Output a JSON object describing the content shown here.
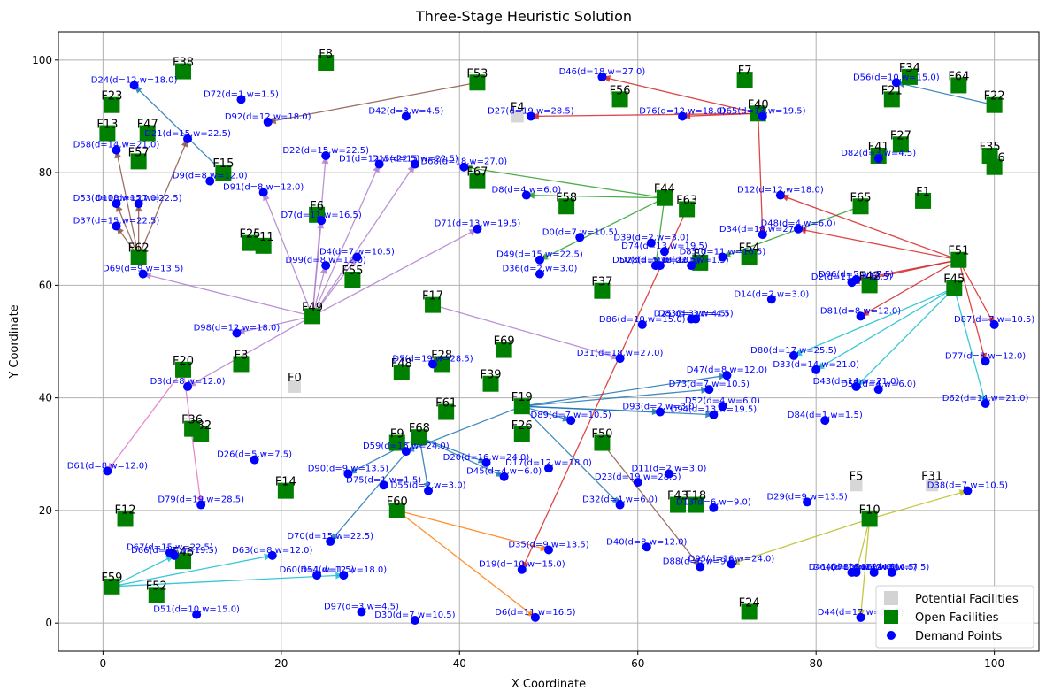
{
  "chart_data": {
    "type": "scatter",
    "title": "Three-Stage Heuristic Solution",
    "xlabel": "X Coordinate",
    "ylabel": "Y Coordinate",
    "xlim": [
      -5,
      105
    ],
    "ylim": [
      -5,
      105
    ],
    "xticks": [
      0,
      20,
      40,
      60,
      80,
      100
    ],
    "yticks": [
      0,
      20,
      40,
      60,
      80,
      100
    ],
    "grid": true,
    "legend": {
      "placement": "bottom-right",
      "entries": [
        {
          "label": "Potential Facilities",
          "color": "#d3d3d3",
          "marker": "square"
        },
        {
          "label": "Open Facilities",
          "color": "#008000",
          "marker": "square"
        },
        {
          "label": "Demand Points",
          "color": "#0000ff",
          "marker": "circle"
        }
      ]
    },
    "potential_facilities": [
      {
        "label": "F0",
        "x": 21.5,
        "y": 42
      },
      {
        "label": "F4",
        "x": 46.5,
        "y": 90
      },
      {
        "label": "F5",
        "x": 84.5,
        "y": 24.5
      },
      {
        "label": "F31",
        "x": 93,
        "y": 24.5
      }
    ],
    "open_facilities": [
      {
        "label": "F1",
        "x": 92,
        "y": 75
      },
      {
        "label": "F2",
        "x": 67,
        "y": 64
      },
      {
        "label": "F3",
        "x": 15.5,
        "y": 46
      },
      {
        "label": "F6",
        "x": 24,
        "y": 72.5
      },
      {
        "label": "F7",
        "x": 72,
        "y": 96.5
      },
      {
        "label": "F8",
        "x": 25,
        "y": 99.5
      },
      {
        "label": "F9",
        "x": 33,
        "y": 32
      },
      {
        "label": "F10",
        "x": 86,
        "y": 18.5
      },
      {
        "label": "F11",
        "x": 18,
        "y": 67
      },
      {
        "label": "F12",
        "x": 2.5,
        "y": 18.5
      },
      {
        "label": "F13",
        "x": 0.5,
        "y": 87
      },
      {
        "label": "F14",
        "x": 20.5,
        "y": 23.5
      },
      {
        "label": "F15",
        "x": 13.5,
        "y": 80
      },
      {
        "label": "F16",
        "x": 100,
        "y": 81
      },
      {
        "label": "F17",
        "x": 37,
        "y": 56.5
      },
      {
        "label": "F18",
        "x": 66.5,
        "y": 21
      },
      {
        "label": "F19",
        "x": 47,
        "y": 38.5
      },
      {
        "label": "F20",
        "x": 9,
        "y": 45
      },
      {
        "label": "F21",
        "x": 88.5,
        "y": 93
      },
      {
        "label": "F22",
        "x": 100,
        "y": 92
      },
      {
        "label": "F23",
        "x": 1,
        "y": 92
      },
      {
        "label": "F24",
        "x": 72.5,
        "y": 2
      },
      {
        "label": "F25",
        "x": 16.5,
        "y": 67.5
      },
      {
        "label": "F26",
        "x": 47,
        "y": 33.5
      },
      {
        "label": "F27",
        "x": 89.5,
        "y": 85
      },
      {
        "label": "F28",
        "x": 38,
        "y": 46
      },
      {
        "label": "F32",
        "x": 11,
        "y": 33.5
      },
      {
        "label": "F34",
        "x": 90.5,
        "y": 97
      },
      {
        "label": "F35",
        "x": 99.5,
        "y": 83
      },
      {
        "label": "F36",
        "x": 10,
        "y": 34.5
      },
      {
        "label": "F37",
        "x": 56,
        "y": 59
      },
      {
        "label": "F38",
        "x": 9,
        "y": 98
      },
      {
        "label": "F39",
        "x": 43.5,
        "y": 42.5
      },
      {
        "label": "F40",
        "x": 73.5,
        "y": 90.5
      },
      {
        "label": "F41",
        "x": 87,
        "y": 83
      },
      {
        "label": "F42",
        "x": 86,
        "y": 60
      },
      {
        "label": "F43",
        "x": 64.5,
        "y": 21
      },
      {
        "label": "F44",
        "x": 63,
        "y": 75.5
      },
      {
        "label": "F45",
        "x": 95.5,
        "y": 59.5
      },
      {
        "label": "F46",
        "x": 9,
        "y": 11
      },
      {
        "label": "F47",
        "x": 5,
        "y": 87
      },
      {
        "label": "F48",
        "x": 33.5,
        "y": 44.5
      },
      {
        "label": "F49",
        "x": 23.5,
        "y": 54.5
      },
      {
        "label": "F50",
        "x": 56,
        "y": 32
      },
      {
        "label": "F51",
        "x": 96,
        "y": 64.5
      },
      {
        "label": "F52",
        "x": 6,
        "y": 5
      },
      {
        "label": "F53",
        "x": 42,
        "y": 96
      },
      {
        "label": "F54",
        "x": 72.5,
        "y": 65
      },
      {
        "label": "F55",
        "x": 28,
        "y": 61
      },
      {
        "label": "F56",
        "x": 58,
        "y": 93
      },
      {
        "label": "F57",
        "x": 4,
        "y": 82
      },
      {
        "label": "F58",
        "x": 52,
        "y": 74
      },
      {
        "label": "F59",
        "x": 1,
        "y": 6.5
      },
      {
        "label": "F60",
        "x": 33,
        "y": 20
      },
      {
        "label": "F61",
        "x": 38.5,
        "y": 37.5
      },
      {
        "label": "F62",
        "x": 4,
        "y": 65
      },
      {
        "label": "F63",
        "x": 65.5,
        "y": 73.5
      },
      {
        "label": "F64",
        "x": 96,
        "y": 95.5
      },
      {
        "label": "F65",
        "x": 85,
        "y": 74
      },
      {
        "label": "F67",
        "x": 42,
        "y": 78.5
      },
      {
        "label": "F68",
        "x": 35.5,
        "y": 33
      },
      {
        "label": "F69",
        "x": 45,
        "y": 48.5
      }
    ],
    "demand_points": [
      {
        "label": "D0(d=7,w=10.5)",
        "x": 53.5,
        "y": 68.5
      },
      {
        "label": "D1(d=12,w=22.5)",
        "x": 31,
        "y": 81.5
      },
      {
        "label": "D2(d=11,w=16.5)",
        "x": 84,
        "y": 60.5
      },
      {
        "label": "D3(d=8,w=12.0)",
        "x": 9.5,
        "y": 42
      },
      {
        "label": "D4(d=7,w=10.5)",
        "x": 28.5,
        "y": 65
      },
      {
        "label": "D5(d=19,w=28.5)",
        "x": 37,
        "y": 46
      },
      {
        "label": "D6(d=11,w=16.5)",
        "x": 48.5,
        "y": 1
      },
      {
        "label": "D7(d=11,w=16.5)",
        "x": 24.5,
        "y": 71.5
      },
      {
        "label": "D8(d=4,w=6.0)",
        "x": 47.5,
        "y": 76
      },
      {
        "label": "D9(d=8,w=12.0)",
        "x": 12,
        "y": 78.5
      },
      {
        "label": "D10(d=15,w=22.5)",
        "x": 4,
        "y": 74.5
      },
      {
        "label": "D11(d=2,w=3.0)",
        "x": 63.5,
        "y": 26.5
      },
      {
        "label": "D12(d=12,w=18.0)",
        "x": 76,
        "y": 76
      },
      {
        "label": "D13(d=6,w=9.0)",
        "x": 68.5,
        "y": 20.5
      },
      {
        "label": "D14(d=2,w=3.0)",
        "x": 75,
        "y": 57.5
      },
      {
        "label": "D15(d=15,w=22.5)",
        "x": 35,
        "y": 81.5
      },
      {
        "label": "D16(d=5,w=7.5)",
        "x": 88.5,
        "y": 9
      },
      {
        "label": "D17(d=12,w=18.0)",
        "x": 50,
        "y": 27.5
      },
      {
        "label": "D18(d=1,w=1.5)",
        "x": 66,
        "y": 63.5
      },
      {
        "label": "D19(d=10,w=15.0)",
        "x": 47,
        "y": 9.5
      },
      {
        "label": "D20(d=16,w=24.0)",
        "x": 43,
        "y": 28.5
      },
      {
        "label": "D21(d=15,w=22.5)",
        "x": 9.5,
        "y": 86
      },
      {
        "label": "D22(d=15,w=22.5)",
        "x": 25,
        "y": 83
      },
      {
        "label": "D23(d=19,w=28.5)",
        "x": 60,
        "y": 25
      },
      {
        "label": "D24(d=12,w=18.0)",
        "x": 3.5,
        "y": 95.5
      },
      {
        "label": "D25(d=3,w=4.5)",
        "x": 66,
        "y": 54
      },
      {
        "label": "D26(d=5,w=7.5)",
        "x": 17,
        "y": 29
      },
      {
        "label": "D27(d=19,w=28.5)",
        "x": 48,
        "y": 90
      },
      {
        "label": "D28(d=7,w=10.5)",
        "x": 62.5,
        "y": 63.5
      },
      {
        "label": "D29(d=9,w=13.5)",
        "x": 79,
        "y": 21.5
      },
      {
        "label": "D30(d=7,w=10.5)",
        "x": 35,
        "y": 0.5
      },
      {
        "label": "D31(d=18,w=27.0)",
        "x": 58,
        "y": 47
      },
      {
        "label": "D32(d=4,w=6.0)",
        "x": 58,
        "y": 21
      },
      {
        "label": "D33(d=14,w=21.0)",
        "x": 80,
        "y": 45
      },
      {
        "label": "D34(d=18,w=27.0)",
        "x": 74,
        "y": 69
      },
      {
        "label": "D35(d=9,w=13.5)",
        "x": 50,
        "y": 13
      },
      {
        "label": "D36(d=2,w=3.0)",
        "x": 49,
        "y": 62
      },
      {
        "label": "D37(d=15,w=22.5)",
        "x": 1.5,
        "y": 70.5
      },
      {
        "label": "D38(d=7,w=10.5)",
        "x": 97,
        "y": 23.5
      },
      {
        "label": "D39(d=2,w=3.0)",
        "x": 61.5,
        "y": 67.5
      },
      {
        "label": "D40(d=8,w=12.0)",
        "x": 61,
        "y": 13.5
      },
      {
        "label": "D41(d=16,w=24.0)",
        "x": 84,
        "y": 9
      },
      {
        "label": "D42(d=3,w=4.5)",
        "x": 34,
        "y": 90
      },
      {
        "label": "D43(d=14,w=21.0)",
        "x": 84.5,
        "y": 42
      },
      {
        "label": "D44(d=17,w=25.5)",
        "x": 85,
        "y": 1
      },
      {
        "label": "D45(d=4,w=6.0)",
        "x": 45,
        "y": 26
      },
      {
        "label": "D46(d=18,w=27.0)",
        "x": 56,
        "y": 97
      },
      {
        "label": "D47(d=8,w=12.0)",
        "x": 70,
        "y": 44
      },
      {
        "label": "D48(d=4,w=6.0)",
        "x": 78,
        "y": 70
      },
      {
        "label": "D49(d=15,w=22.5)",
        "x": 49,
        "y": 64.5
      },
      {
        "label": "D50(d=15,w=22.5)",
        "x": 62,
        "y": 63.5
      },
      {
        "label": "D51(d=10,w=15.0)",
        "x": 10.5,
        "y": 1.5
      },
      {
        "label": "D52(d=4,w=6.0)",
        "x": 69.5,
        "y": 38.5
      },
      {
        "label": "D53(d=18,w=27.0)",
        "x": 1.5,
        "y": 74.5
      },
      {
        "label": "D54(d=12,w=18.0)",
        "x": 27,
        "y": 8.5
      },
      {
        "label": "D55(d=2,w=3.0)",
        "x": 36.5,
        "y": 23.5
      },
      {
        "label": "D56(d=10,w=15.0)",
        "x": 89,
        "y": 96
      },
      {
        "label": "D57(d=4,w=6.0)",
        "x": 87,
        "y": 41.5
      },
      {
        "label": "D58(d=14,w=21.0)",
        "x": 1.5,
        "y": 84
      },
      {
        "label": "D59(d=16,w=24.0)",
        "x": 34,
        "y": 30.5
      },
      {
        "label": "D60(d=1,w=1.5)",
        "x": 24,
        "y": 8.5
      },
      {
        "label": "D61(d=8,w=12.0)",
        "x": 0.5,
        "y": 27
      },
      {
        "label": "D62(d=14,w=21.0)",
        "x": 99,
        "y": 39
      },
      {
        "label": "D63(d=8,w=12.0)",
        "x": 19,
        "y": 12
      },
      {
        "label": "D64(d=16,w=24.0)",
        "x": 84.5,
        "y": 9
      },
      {
        "label": "D65(d=13,w=19.5)",
        "x": 74,
        "y": 90
      },
      {
        "label": "D66(d=13,w=19.5)",
        "x": 8,
        "y": 12
      },
      {
        "label": "D67(d=15,w=22.5)",
        "x": 7.5,
        "y": 12.5
      },
      {
        "label": "D68(d=18,w=27.0)",
        "x": 40.5,
        "y": 81
      },
      {
        "label": "D69(d=9,w=13.5)",
        "x": 4.5,
        "y": 62
      },
      {
        "label": "D70(d=15,w=22.5)",
        "x": 25.5,
        "y": 14.5
      },
      {
        "label": "D71(d=13,w=19.5)",
        "x": 42,
        "y": 70
      },
      {
        "label": "D72(d=1,w=1.5)",
        "x": 15.5,
        "y": 93
      },
      {
        "label": "D73(d=7,w=10.5)",
        "x": 68,
        "y": 41.5
      },
      {
        "label": "D74(d=13,w=19.5)",
        "x": 63,
        "y": 66
      },
      {
        "label": "D75(d=1,w=1.5)",
        "x": 31.5,
        "y": 24.5
      },
      {
        "label": "D76(d=12,w=18.0)",
        "x": 65,
        "y": 90
      },
      {
        "label": "D77(d=8,w=12.0)",
        "x": 99,
        "y": 46.5
      },
      {
        "label": "D78(d=11,w=16.5)",
        "x": 86.5,
        "y": 9
      },
      {
        "label": "D79(d=19,w=28.5)",
        "x": 11,
        "y": 21
      },
      {
        "label": "D80(d=17,w=25.5)",
        "x": 77.5,
        "y": 47.5
      },
      {
        "label": "D81(d=8,w=12.0)",
        "x": 85,
        "y": 54.5
      },
      {
        "label": "D82(d=3,w=4.5)",
        "x": 87,
        "y": 82.5
      },
      {
        "label": "D83(d=3,w=4.5)",
        "x": 66.5,
        "y": 54
      },
      {
        "label": "D84(d=1,w=1.5)",
        "x": 81,
        "y": 36
      },
      {
        "label": "D85(d=11,w=16.5)",
        "x": 69.5,
        "y": 65
      },
      {
        "label": "D86(d=10,w=15.0)",
        "x": 60.5,
        "y": 53
      },
      {
        "label": "D87(d=7,w=10.5)",
        "x": 100,
        "y": 53
      },
      {
        "label": "D88(d=6,w=9.0)",
        "x": 67,
        "y": 10
      },
      {
        "label": "D89(d=7,w=10.5)",
        "x": 52.5,
        "y": 36
      },
      {
        "label": "D90(d=9,w=13.5)",
        "x": 27.5,
        "y": 26.5
      },
      {
        "label": "D91(d=8,w=12.0)",
        "x": 18,
        "y": 76.5
      },
      {
        "label": "D92(d=12,w=18.0)",
        "x": 18.5,
        "y": 89
      },
      {
        "label": "D93(d=2,w=3.0)",
        "x": 62.5,
        "y": 37.5
      },
      {
        "label": "D94(d=13,w=19.5)",
        "x": 68.5,
        "y": 37
      },
      {
        "label": "D95(d=16,w=24.0)",
        "x": 70.5,
        "y": 10.5
      },
      {
        "label": "D96(d=5,w=7.5)",
        "x": 84.5,
        "y": 61
      },
      {
        "label": "D97(d=3,w=4.5)",
        "x": 29,
        "y": 2
      },
      {
        "label": "D98(d=12,w=18.0)",
        "x": 15,
        "y": 51.5
      },
      {
        "label": "D99(d=8,w=12.0)",
        "x": 25,
        "y": 63.5
      }
    ],
    "assignments": [
      {
        "facility": "F49",
        "color": "#b07fd0",
        "demands": [
          "D1(d=12,w=22.5)",
          "D15(d=15,w=22.5)",
          "D22(d=15,w=22.5)",
          "D4(d=7,w=10.5)",
          "D7(d=11,w=16.5)",
          "D91(d=8,w=12.0)",
          "D99(d=8,w=12.0)",
          "D69(d=9,w=13.5)",
          "D98(d=12,w=18.0)",
          "D71(d=13,w=19.5)",
          "D3(d=8,w=12.0)"
        ]
      },
      {
        "facility": "F20",
        "color": "#e377c2",
        "demands": [
          "D61(d=8,w=12.0)",
          "D79(d=19,w=28.5)"
        ]
      },
      {
        "facility": "F62",
        "color": "#8c564b",
        "demands": [
          "D21(d=15,w=22.5)",
          "D58(d=14,w=21.0)",
          "D10(d=15,w=22.5)",
          "D53(d=18,w=27.0)",
          "D37(d=15,w=22.5)"
        ]
      },
      {
        "facility": "F53",
        "color": "#8c564b",
        "demands": [
          "D92(d=12,w=18.0)"
        ]
      },
      {
        "facility": "F15",
        "color": "#1f77b4",
        "demands": [
          "D24(d=12,w=18.0)"
        ]
      },
      {
        "facility": "F44",
        "color": "#2ca02c",
        "demands": [
          "D68(d=18,w=27.0)",
          "D49(d=15,w=22.5)",
          "D50(d=15,w=22.5)",
          "D8(d=4,w=6.0)"
        ]
      },
      {
        "facility": "F65",
        "color": "#2ca02c",
        "demands": [
          "D85(d=11,w=16.5)"
        ]
      },
      {
        "facility": "F40",
        "color": "#d62728",
        "demands": [
          "D46(d=18,w=27.0)",
          "D27(d=19,w=28.5)",
          "D76(d=12,w=18.0)",
          "D34(d=18,w=27.0)"
        ]
      },
      {
        "facility": "F51",
        "color": "#d62728",
        "demands": [
          "D12(d=12,w=18.0)",
          "D48(d=4,w=6.0)",
          "D96(d=5,w=7.5)",
          "D2(d=11,w=16.5)",
          "D81(d=8,w=12.0)",
          "D87(d=7,w=10.5)",
          "D77(d=8,w=12.0)"
        ]
      },
      {
        "facility": "F22",
        "color": "#1f77b4",
        "demands": [
          "D56(d=10,w=15.0)"
        ]
      },
      {
        "facility": "F45",
        "color": "#17becf",
        "demands": [
          "D80(d=17,w=25.5)",
          "D33(d=14,w=21.0)",
          "D43(d=14,w=21.0)",
          "D62(d=14,w=21.0)"
        ]
      },
      {
        "facility": "F19",
        "color": "#1f77b4",
        "demands": [
          "D73(d=7,w=10.5)",
          "D47(d=8,w=12.0)",
          "D93(d=2,w=3.0)",
          "D94(d=13,w=19.5)",
          "D89(d=7,w=10.5)",
          "D32(d=4,w=6.0)",
          "D59(d=16,w=24.0)"
        ]
      },
      {
        "facility": "F68",
        "color": "#1f77b4",
        "demands": [
          "D20(d=16,w=24.0)",
          "D45(d=4,w=6.0)",
          "D55(d=2,w=3.0)",
          "D90(d=9,w=13.5)",
          "D70(d=15,w=22.5)"
        ]
      },
      {
        "facility": "F17",
        "color": "#b07fd0",
        "demands": [
          "D31(d=18,w=27.0)"
        ]
      },
      {
        "facility": "F50",
        "color": "#8c564b",
        "demands": [
          "D88(d=6,w=9.0)"
        ]
      },
      {
        "facility": "F10",
        "color": "#bcbd22",
        "demands": [
          "D95(d=16,w=24.0)",
          "D44(d=17,w=25.5)",
          "D38(d=7,w=10.5)",
          "D64(d=16,w=24.0)"
        ]
      },
      {
        "facility": "F60",
        "color": "#ff7f0e",
        "demands": [
          "D35(d=9,w=13.5)",
          "D6(d=11,w=16.5)"
        ]
      },
      {
        "facility": "F59",
        "color": "#17becf",
        "demands": [
          "D66(d=13,w=19.5)",
          "D63(d=8,w=12.0)",
          "D54(d=12,w=18.0)"
        ]
      },
      {
        "facility": "F63",
        "color": "#d62728",
        "demands": [
          "D19(d=10,w=15.0)"
        ]
      }
    ]
  }
}
